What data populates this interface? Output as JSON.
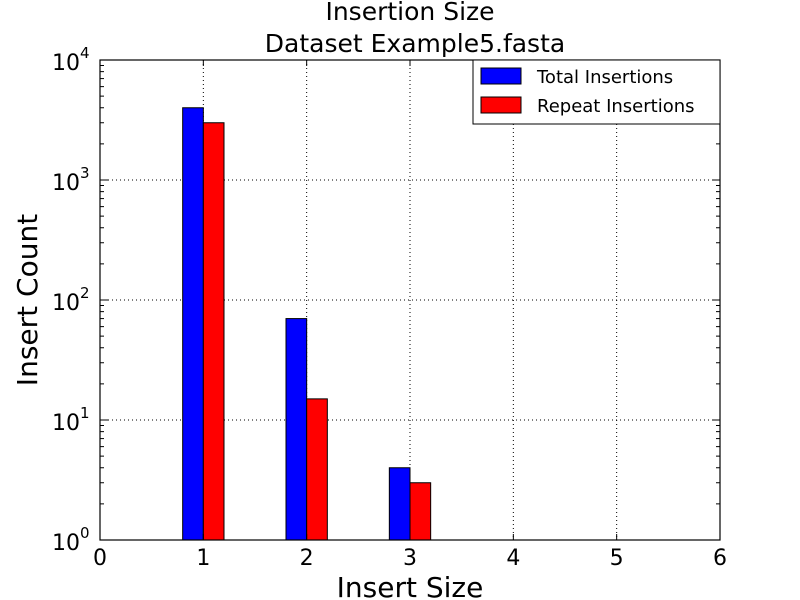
{
  "chart_data": {
    "type": "bar",
    "title": "Insertion Size",
    "subtitle": "Dataset Example5.fasta",
    "xlabel": "Insert Size",
    "ylabel": "Insert Count",
    "xlim": [
      0,
      6
    ],
    "ylim": [
      1,
      10000
    ],
    "yscale": "log",
    "grid": true,
    "legend_position": "top-right",
    "x_ticks": [
      "0",
      "1",
      "2",
      "3",
      "4",
      "5",
      "6"
    ],
    "y_ticks": [
      {
        "base": "10",
        "exp": "0"
      },
      {
        "base": "10",
        "exp": "1"
      },
      {
        "base": "10",
        "exp": "2"
      },
      {
        "base": "10",
        "exp": "3"
      },
      {
        "base": "10",
        "exp": "4"
      }
    ],
    "x": [
      1,
      2,
      3,
      6
    ],
    "series": [
      {
        "name": "Total Insertions",
        "color": "#0000ff",
        "values": [
          4000,
          70,
          4,
          1
        ]
      },
      {
        "name": "Repeat Insertions",
        "color": "#ff0000",
        "values": [
          3000,
          15,
          3,
          1
        ]
      }
    ]
  }
}
